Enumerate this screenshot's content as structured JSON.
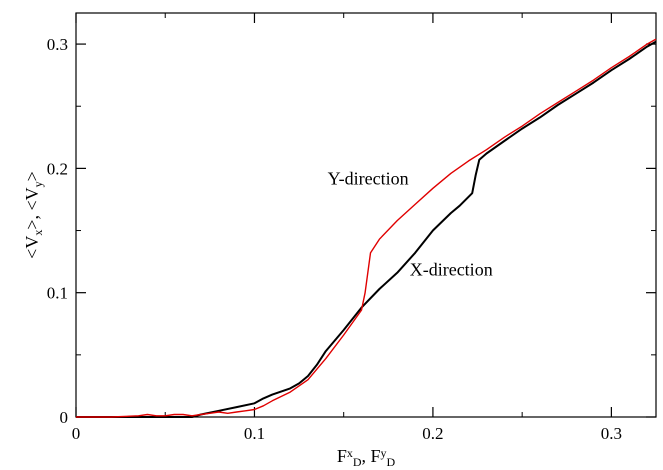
{
  "chart_data": {
    "type": "line",
    "title": "",
    "xlabel": {
      "parts": [
        {
          "text": "F",
          "kind": "base"
        },
        {
          "text": "x",
          "kind": "sup"
        },
        {
          "text": "D",
          "kind": "sub"
        },
        {
          "text": ", F",
          "kind": "base"
        },
        {
          "text": "y",
          "kind": "sup"
        },
        {
          "text": "D",
          "kind": "sub"
        }
      ]
    },
    "ylabel": {
      "parts": [
        {
          "text": "<V",
          "kind": "base"
        },
        {
          "text": "x",
          "kind": "sub"
        },
        {
          "text": ">, <V",
          "kind": "base"
        },
        {
          "text": "y",
          "kind": "sub"
        },
        {
          "text": ">",
          "kind": "base"
        }
      ]
    },
    "xlim": [
      0,
      0.325
    ],
    "ylim": [
      0,
      0.325
    ],
    "grid": false,
    "x_ticks": [
      {
        "value": 0,
        "label": "0"
      },
      {
        "value": 0.1,
        "label": "0.1"
      },
      {
        "value": 0.2,
        "label": "0.2"
      },
      {
        "value": 0.3,
        "label": "0.3"
      }
    ],
    "y_ticks": [
      {
        "value": 0,
        "label": "0"
      },
      {
        "value": 0.1,
        "label": "0.1"
      },
      {
        "value": 0.2,
        "label": "0.2"
      },
      {
        "value": 0.3,
        "label": "0.3"
      }
    ],
    "x_minor_step": 0.05,
    "y_minor_step": 0.05,
    "series": [
      {
        "color": "#000000",
        "x": [
          0,
          0.02,
          0.04,
          0.06,
          0.065,
          0.07,
          0.08,
          0.09,
          0.1,
          0.105,
          0.11,
          0.12,
          0.125,
          0.13,
          0.135,
          0.14,
          0.15,
          0.16,
          0.17,
          0.18,
          0.19,
          0.2,
          0.21,
          0.215,
          0.222,
          0.224,
          0.226,
          0.23,
          0.24,
          0.25,
          0.26,
          0.27,
          0.28,
          0.29,
          0.3,
          0.31,
          0.32,
          0.325
        ],
        "y": [
          0,
          0,
          0,
          0,
          0,
          0.002,
          0.005,
          0.008,
          0.011,
          0.015,
          0.018,
          0.023,
          0.027,
          0.033,
          0.042,
          0.053,
          0.07,
          0.088,
          0.103,
          0.116,
          0.132,
          0.15,
          0.164,
          0.17,
          0.18,
          0.195,
          0.207,
          0.212,
          0.222,
          0.232,
          0.241,
          0.251,
          0.26,
          0.269,
          0.279,
          0.288,
          0.298,
          0.302
        ]
      },
      {
        "color": "#e00000",
        "x": [
          0,
          0.02,
          0.035,
          0.04,
          0.045,
          0.05,
          0.055,
          0.06,
          0.065,
          0.07,
          0.075,
          0.08,
          0.085,
          0.09,
          0.095,
          0.1,
          0.105,
          0.11,
          0.12,
          0.13,
          0.14,
          0.15,
          0.16,
          0.162,
          0.165,
          0.17,
          0.18,
          0.19,
          0.2,
          0.21,
          0.22,
          0.23,
          0.24,
          0.25,
          0.26,
          0.27,
          0.28,
          0.29,
          0.3,
          0.31,
          0.32,
          0.325
        ],
        "y": [
          0,
          0,
          0.001,
          0.002,
          0.001,
          0.001,
          0.002,
          0.002,
          0.001,
          0.002,
          0.003,
          0.004,
          0.003,
          0.004,
          0.005,
          0.006,
          0.009,
          0.013,
          0.02,
          0.03,
          0.047,
          0.066,
          0.086,
          0.1,
          0.132,
          0.143,
          0.158,
          0.171,
          0.184,
          0.196,
          0.206,
          0.215,
          0.225,
          0.234,
          0.244,
          0.253,
          0.262,
          0.271,
          0.281,
          0.29,
          0.3,
          0.304
        ]
      }
    ],
    "annotations": [
      {
        "text": "Y-direction",
        "x": 0.141,
        "y": 0.187
      },
      {
        "text": "X-direction",
        "x": 0.187,
        "y": 0.114
      }
    ]
  }
}
